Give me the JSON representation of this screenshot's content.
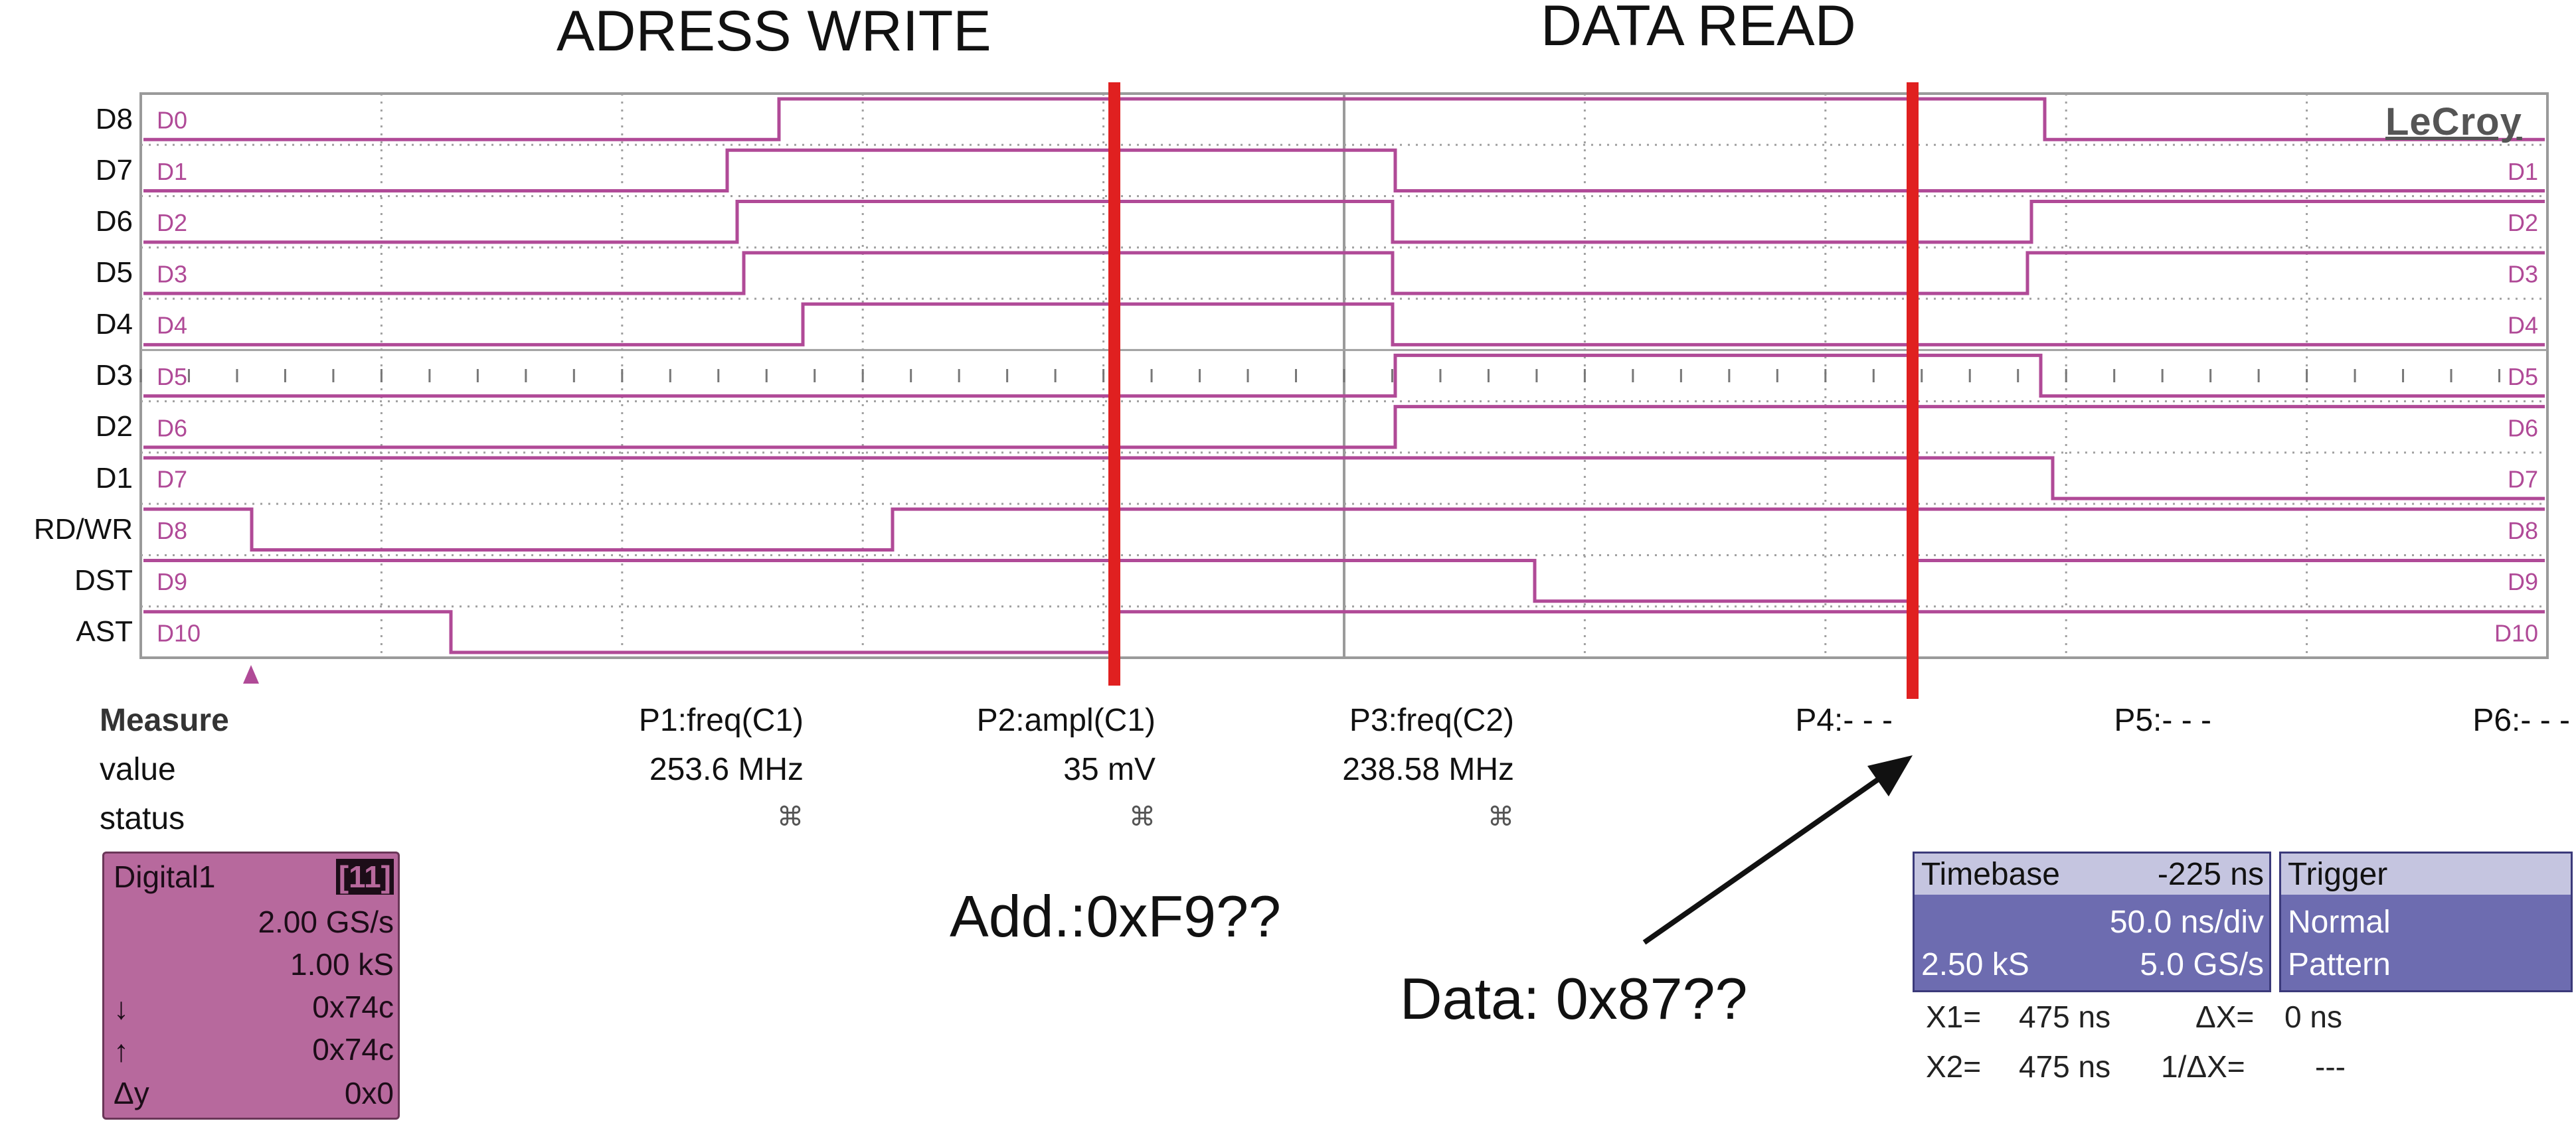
{
  "sections": {
    "address_write": "ADRESS WRITE",
    "data_read": "DATA READ"
  },
  "brand": "LeCroy",
  "channel_labels": [
    "D8",
    "D7",
    "D6",
    "D5",
    "D4",
    "D3",
    "D2",
    "D1",
    "RD/WR",
    "DST",
    "AST"
  ],
  "trace_tags": [
    "D0",
    "D1",
    "D2",
    "D3",
    "D4",
    "D5",
    "D6",
    "D7",
    "D8",
    "D9",
    "D10"
  ],
  "traces": [
    {
      "tag": "D0",
      "right_tag": "",
      "start": "low",
      "transitions": [
        1173,
        3079
      ]
    },
    {
      "tag": "D1",
      "right_tag": "D1",
      "start": "low",
      "transitions": [
        1095,
        2101
      ]
    },
    {
      "tag": "D2",
      "right_tag": "D2",
      "start": "low",
      "transitions": [
        1110,
        2097,
        3059
      ]
    },
    {
      "tag": "D3",
      "right_tag": "D3",
      "start": "low",
      "transitions": [
        1120,
        2097,
        3053
      ]
    },
    {
      "tag": "D4",
      "right_tag": "D4",
      "start": "low",
      "transitions": [
        1209,
        2097
      ]
    },
    {
      "tag": "D5",
      "right_tag": "D5",
      "start": "low",
      "transitions": [
        2101,
        3073
      ]
    },
    {
      "tag": "D6",
      "right_tag": "D6",
      "start": "low",
      "transitions": [
        2101
      ]
    },
    {
      "tag": "D7",
      "right_tag": "D7",
      "start": "high",
      "transitions": [
        3091
      ]
    },
    {
      "tag": "D8",
      "right_tag": "D8",
      "start": "high",
      "transitions": [
        379,
        1344
      ]
    },
    {
      "tag": "D9",
      "right_tag": "D9",
      "start": "high",
      "transitions": [
        2311,
        2880
      ]
    },
    {
      "tag": "D10",
      "right_tag": "D10",
      "start": "high",
      "transitions": [
        679,
        1673
      ]
    }
  ],
  "measure": {
    "title": "Measure",
    "row_labels": [
      "value",
      "status"
    ],
    "params": [
      {
        "name": "P1:freq(C1)",
        "value": "253.6 MHz",
        "status": "⌘"
      },
      {
        "name": "P2:ampl(C1)",
        "value": "35 mV",
        "status": "⌘"
      },
      {
        "name": "P3:freq(C2)",
        "value": "238.58 MHz",
        "status": "⌘"
      },
      {
        "name": "P4:- - -",
        "value": "",
        "status": ""
      },
      {
        "name": "P5:- - -",
        "value": "",
        "status": ""
      },
      {
        "name": "P6:- - -",
        "value": "",
        "status": ""
      }
    ]
  },
  "digital": {
    "name": "Digital1",
    "badge": "[11]",
    "sample_rate": "2.00 GS/s",
    "samples": "1.00 kS",
    "rows": [
      {
        "symbol": "↓",
        "value": "0x74c"
      },
      {
        "symbol": "↑",
        "value": "0x74c"
      },
      {
        "symbol": "Δy",
        "value": "0x0"
      }
    ]
  },
  "annotations": {
    "address": "Add.:0xF9??",
    "data": "Data: 0x87??"
  },
  "timebase": {
    "label": "Timebase",
    "delay": "-225 ns",
    "per_div": "50.0 ns/div",
    "samples": "2.50 kS",
    "rate": "5.0 GS/s"
  },
  "trigger": {
    "label": "Trigger",
    "mode": "Normal",
    "type": "Pattern"
  },
  "cursors": {
    "x1_label": "X1=",
    "x1": "475 ns",
    "x2_label": "X2=",
    "x2": "475 ns",
    "dx_label": "ΔX=",
    "dx": "0 ns",
    "inv_dx_label": "1/ΔX=",
    "inv_dx": "---"
  },
  "colors": {
    "trace": "#b04a97",
    "grid": "#a0a0a0",
    "marker": "#e02020",
    "text": "#111111"
  }
}
